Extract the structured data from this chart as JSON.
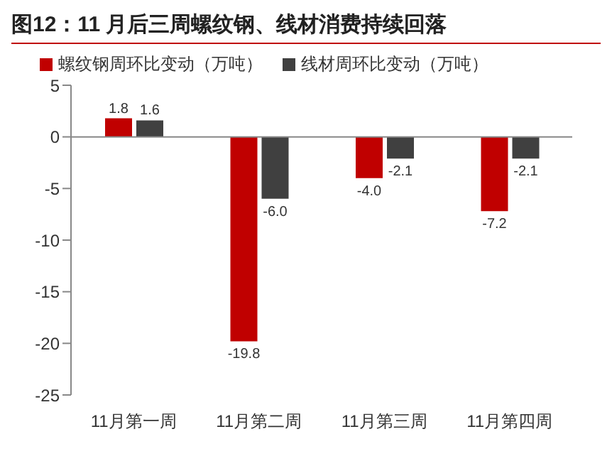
{
  "chart_data": {
    "type": "bar",
    "title": "图12：11 月后三周螺纹钢、线材消费持续回落",
    "categories": [
      "11月第一周",
      "11月第二周",
      "11月第三周",
      "11月第四周"
    ],
    "series": [
      {
        "name": "螺纹钢周环比变动（万吨）",
        "color": "#c00000",
        "values": [
          1.8,
          -19.8,
          -4.0,
          -7.2
        ],
        "value_labels": [
          "1.8",
          "-19.8",
          "-4.0",
          "-7.2"
        ]
      },
      {
        "name": "线材周环比变动（万吨）",
        "color": "#404040",
        "values": [
          1.6,
          -6.0,
          -2.1,
          -2.1
        ],
        "value_labels": [
          "1.6",
          "-6.0",
          "-2.1",
          "-2.1"
        ]
      }
    ],
    "ylim": [
      -25,
      5
    ],
    "yticks": [
      -25,
      -20,
      -15,
      -10,
      -5,
      0,
      5
    ],
    "ref_lines": [
      {
        "axis": "y",
        "value": 0,
        "color": "#888888"
      }
    ],
    "legend": "top left"
  }
}
